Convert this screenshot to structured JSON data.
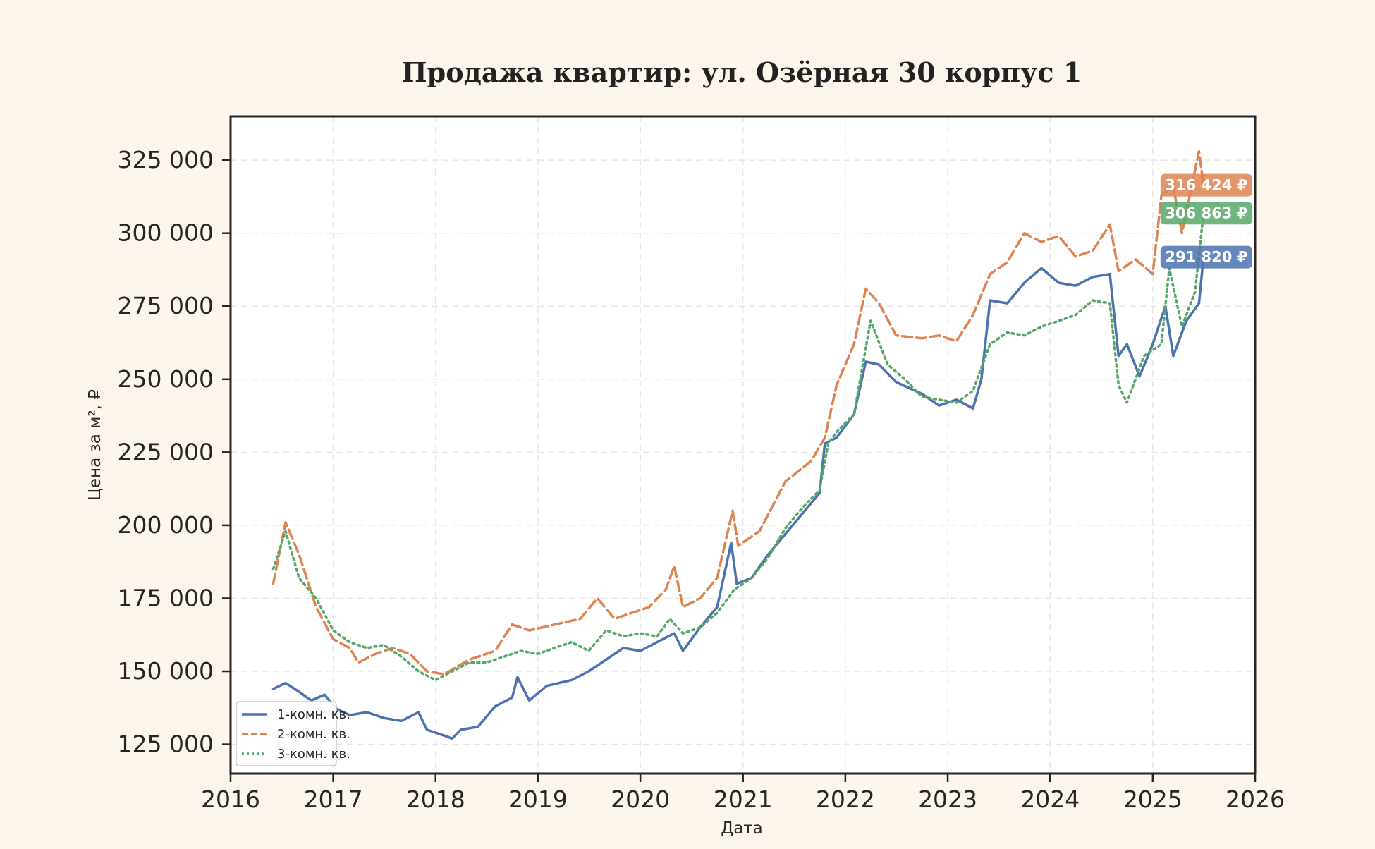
{
  "chart_data": {
    "type": "line",
    "title": "Продажа квартир: ул. Озёрная 30 корпус 1",
    "xlabel": "Дата",
    "ylabel": "Цена за м², ₽",
    "xlim": [
      "2016-01-01",
      "2026-01-01"
    ],
    "ylim": [
      115000,
      340000
    ],
    "x_ticks": [
      "2016",
      "2017",
      "2018",
      "2019",
      "2020",
      "2021",
      "2022",
      "2023",
      "2024",
      "2025",
      "2026"
    ],
    "y_ticks": [
      "125 000",
      "150 000",
      "175 000",
      "200 000",
      "225 000",
      "250 000",
      "275 000",
      "300 000",
      "325 000"
    ],
    "y_tick_values": [
      125000,
      150000,
      175000,
      200000,
      225000,
      250000,
      275000,
      300000,
      325000
    ],
    "grid": true,
    "legend_position": "lower-left",
    "series": [
      {
        "name": "1-комн. кв.",
        "color": "#4c72b0",
        "line_style": "solid",
        "last_value_label": "291 820 ₽",
        "points": [
          [
            "2016-06-01",
            144000
          ],
          [
            "2016-07-15",
            146000
          ],
          [
            "2016-09-01",
            143000
          ],
          [
            "2016-10-15",
            140000
          ],
          [
            "2016-12-01",
            142000
          ],
          [
            "2017-01-15",
            137000
          ],
          [
            "2017-03-01",
            135000
          ],
          [
            "2017-05-01",
            136000
          ],
          [
            "2017-07-01",
            134000
          ],
          [
            "2017-09-01",
            133000
          ],
          [
            "2017-11-01",
            136000
          ],
          [
            "2017-12-01",
            130000
          ],
          [
            "2018-02-01",
            128000
          ],
          [
            "2018-03-01",
            127000
          ],
          [
            "2018-04-01",
            130000
          ],
          [
            "2018-06-01",
            131000
          ],
          [
            "2018-08-01",
            138000
          ],
          [
            "2018-10-01",
            141000
          ],
          [
            "2018-10-20",
            148000
          ],
          [
            "2018-12-01",
            140000
          ],
          [
            "2019-02-01",
            145000
          ],
          [
            "2019-05-01",
            147000
          ],
          [
            "2019-07-01",
            150000
          ],
          [
            "2019-09-01",
            154000
          ],
          [
            "2019-11-01",
            158000
          ],
          [
            "2020-01-01",
            157000
          ],
          [
            "2020-03-01",
            160000
          ],
          [
            "2020-05-01",
            163000
          ],
          [
            "2020-06-01",
            157000
          ],
          [
            "2020-08-01",
            165000
          ],
          [
            "2020-10-01",
            172000
          ],
          [
            "2020-11-20",
            194000
          ],
          [
            "2020-12-10",
            180000
          ],
          [
            "2021-02-01",
            182000
          ],
          [
            "2021-04-01",
            190000
          ],
          [
            "2021-06-01",
            197000
          ],
          [
            "2021-08-01",
            204000
          ],
          [
            "2021-10-01",
            211000
          ],
          [
            "2021-10-20",
            228000
          ],
          [
            "2021-12-01",
            230000
          ],
          [
            "2022-02-01",
            238000
          ],
          [
            "2022-03-15",
            256000
          ],
          [
            "2022-05-01",
            255000
          ],
          [
            "2022-07-01",
            249000
          ],
          [
            "2022-10-01",
            245000
          ],
          [
            "2022-12-01",
            241000
          ],
          [
            "2023-02-01",
            243000
          ],
          [
            "2023-04-01",
            240000
          ],
          [
            "2023-05-01",
            250000
          ],
          [
            "2023-06-01",
            277000
          ],
          [
            "2023-08-01",
            276000
          ],
          [
            "2023-10-01",
            283000
          ],
          [
            "2023-12-01",
            288000
          ],
          [
            "2024-02-01",
            283000
          ],
          [
            "2024-04-01",
            282000
          ],
          [
            "2024-06-01",
            285000
          ],
          [
            "2024-08-01",
            286000
          ],
          [
            "2024-09-01",
            258000
          ],
          [
            "2024-10-01",
            262000
          ],
          [
            "2024-11-15",
            251000
          ],
          [
            "2025-01-01",
            262000
          ],
          [
            "2025-02-15",
            275000
          ],
          [
            "2025-03-15",
            258000
          ],
          [
            "2025-05-01",
            270000
          ],
          [
            "2025-06-15",
            276000
          ],
          [
            "2025-07-01",
            291820
          ]
        ]
      },
      {
        "name": "2-комн. кв.",
        "color": "#dd8452",
        "line_style": "dashed",
        "last_value_label": "316 424 ₽",
        "points": [
          [
            "2016-06-01",
            180000
          ],
          [
            "2016-07-15",
            201000
          ],
          [
            "2016-09-01",
            190000
          ],
          [
            "2016-11-01",
            172000
          ],
          [
            "2017-01-01",
            161000
          ],
          [
            "2017-03-01",
            158000
          ],
          [
            "2017-04-01",
            153000
          ],
          [
            "2017-06-01",
            156000
          ],
          [
            "2017-08-01",
            158000
          ],
          [
            "2017-10-01",
            156000
          ],
          [
            "2017-12-01",
            150000
          ],
          [
            "2018-02-01",
            149000
          ],
          [
            "2018-05-01",
            154000
          ],
          [
            "2018-08-01",
            157000
          ],
          [
            "2018-10-01",
            166000
          ],
          [
            "2018-12-01",
            164000
          ],
          [
            "2019-03-01",
            166000
          ],
          [
            "2019-06-01",
            168000
          ],
          [
            "2019-08-01",
            175000
          ],
          [
            "2019-10-01",
            168000
          ],
          [
            "2019-12-01",
            170000
          ],
          [
            "2020-02-01",
            172000
          ],
          [
            "2020-04-01",
            178000
          ],
          [
            "2020-05-01",
            186000
          ],
          [
            "2020-06-01",
            172000
          ],
          [
            "2020-08-01",
            175000
          ],
          [
            "2020-10-01",
            182000
          ],
          [
            "2020-11-25",
            205000
          ],
          [
            "2020-12-15",
            193000
          ],
          [
            "2021-03-01",
            198000
          ],
          [
            "2021-06-01",
            215000
          ],
          [
            "2021-09-01",
            222000
          ],
          [
            "2021-10-20",
            230000
          ],
          [
            "2021-12-01",
            248000
          ],
          [
            "2022-02-01",
            262000
          ],
          [
            "2022-03-15",
            281000
          ],
          [
            "2022-05-01",
            276000
          ],
          [
            "2022-07-01",
            265000
          ],
          [
            "2022-10-01",
            264000
          ],
          [
            "2022-12-01",
            265000
          ],
          [
            "2023-02-01",
            263000
          ],
          [
            "2023-04-01",
            272000
          ],
          [
            "2023-06-01",
            286000
          ],
          [
            "2023-08-01",
            290000
          ],
          [
            "2023-10-01",
            300000
          ],
          [
            "2023-12-01",
            297000
          ],
          [
            "2024-02-01",
            299000
          ],
          [
            "2024-04-01",
            292000
          ],
          [
            "2024-06-01",
            294000
          ],
          [
            "2024-08-01",
            303000
          ],
          [
            "2024-09-01",
            287000
          ],
          [
            "2024-11-01",
            291000
          ],
          [
            "2025-01-01",
            286000
          ],
          [
            "2025-02-01",
            313000
          ],
          [
            "2025-03-15",
            316000
          ],
          [
            "2025-04-15",
            300000
          ],
          [
            "2025-06-15",
            328000
          ],
          [
            "2025-07-01",
            316424
          ]
        ]
      },
      {
        "name": "3-комн. кв.",
        "color": "#55a868",
        "line_style": "dotted",
        "last_value_label": "306 863 ₽",
        "points": [
          [
            "2016-06-01",
            185000
          ],
          [
            "2016-07-15",
            198000
          ],
          [
            "2016-09-01",
            182000
          ],
          [
            "2016-11-01",
            175000
          ],
          [
            "2017-01-01",
            164000
          ],
          [
            "2017-03-01",
            160000
          ],
          [
            "2017-05-01",
            158000
          ],
          [
            "2017-07-01",
            159000
          ],
          [
            "2017-09-01",
            155000
          ],
          [
            "2017-11-01",
            150000
          ],
          [
            "2018-01-01",
            147000
          ],
          [
            "2018-03-01",
            150000
          ],
          [
            "2018-05-01",
            153000
          ],
          [
            "2018-07-01",
            153000
          ],
          [
            "2018-09-01",
            155000
          ],
          [
            "2018-11-01",
            157000
          ],
          [
            "2019-01-01",
            156000
          ],
          [
            "2019-03-01",
            158000
          ],
          [
            "2019-05-01",
            160000
          ],
          [
            "2019-07-01",
            157000
          ],
          [
            "2019-09-01",
            164000
          ],
          [
            "2019-11-01",
            162000
          ],
          [
            "2020-01-01",
            163000
          ],
          [
            "2020-03-01",
            162000
          ],
          [
            "2020-04-15",
            168000
          ],
          [
            "2020-06-01",
            163000
          ],
          [
            "2020-08-01",
            165000
          ],
          [
            "2020-10-01",
            170000
          ],
          [
            "2020-12-01",
            178000
          ],
          [
            "2021-02-01",
            182000
          ],
          [
            "2021-04-01",
            189000
          ],
          [
            "2021-06-01",
            199000
          ],
          [
            "2021-08-01",
            206000
          ],
          [
            "2021-10-01",
            212000
          ],
          [
            "2021-11-01",
            228000
          ],
          [
            "2021-12-01",
            232000
          ],
          [
            "2022-02-01",
            238000
          ],
          [
            "2022-04-01",
            270000
          ],
          [
            "2022-06-01",
            255000
          ],
          [
            "2022-08-01",
            250000
          ],
          [
            "2022-10-01",
            244000
          ],
          [
            "2022-12-01",
            243000
          ],
          [
            "2023-02-01",
            242000
          ],
          [
            "2023-04-01",
            246000
          ],
          [
            "2023-06-01",
            262000
          ],
          [
            "2023-08-01",
            266000
          ],
          [
            "2023-10-01",
            265000
          ],
          [
            "2023-12-01",
            268000
          ],
          [
            "2024-02-01",
            270000
          ],
          [
            "2024-04-01",
            272000
          ],
          [
            "2024-06-01",
            277000
          ],
          [
            "2024-08-01",
            276000
          ],
          [
            "2024-09-01",
            248000
          ],
          [
            "2024-10-01",
            242000
          ],
          [
            "2024-12-01",
            258000
          ],
          [
            "2025-02-01",
            262000
          ],
          [
            "2025-03-01",
            288000
          ],
          [
            "2025-04-15",
            268000
          ],
          [
            "2025-06-01",
            280000
          ],
          [
            "2025-07-01",
            306863
          ]
        ]
      }
    ]
  }
}
